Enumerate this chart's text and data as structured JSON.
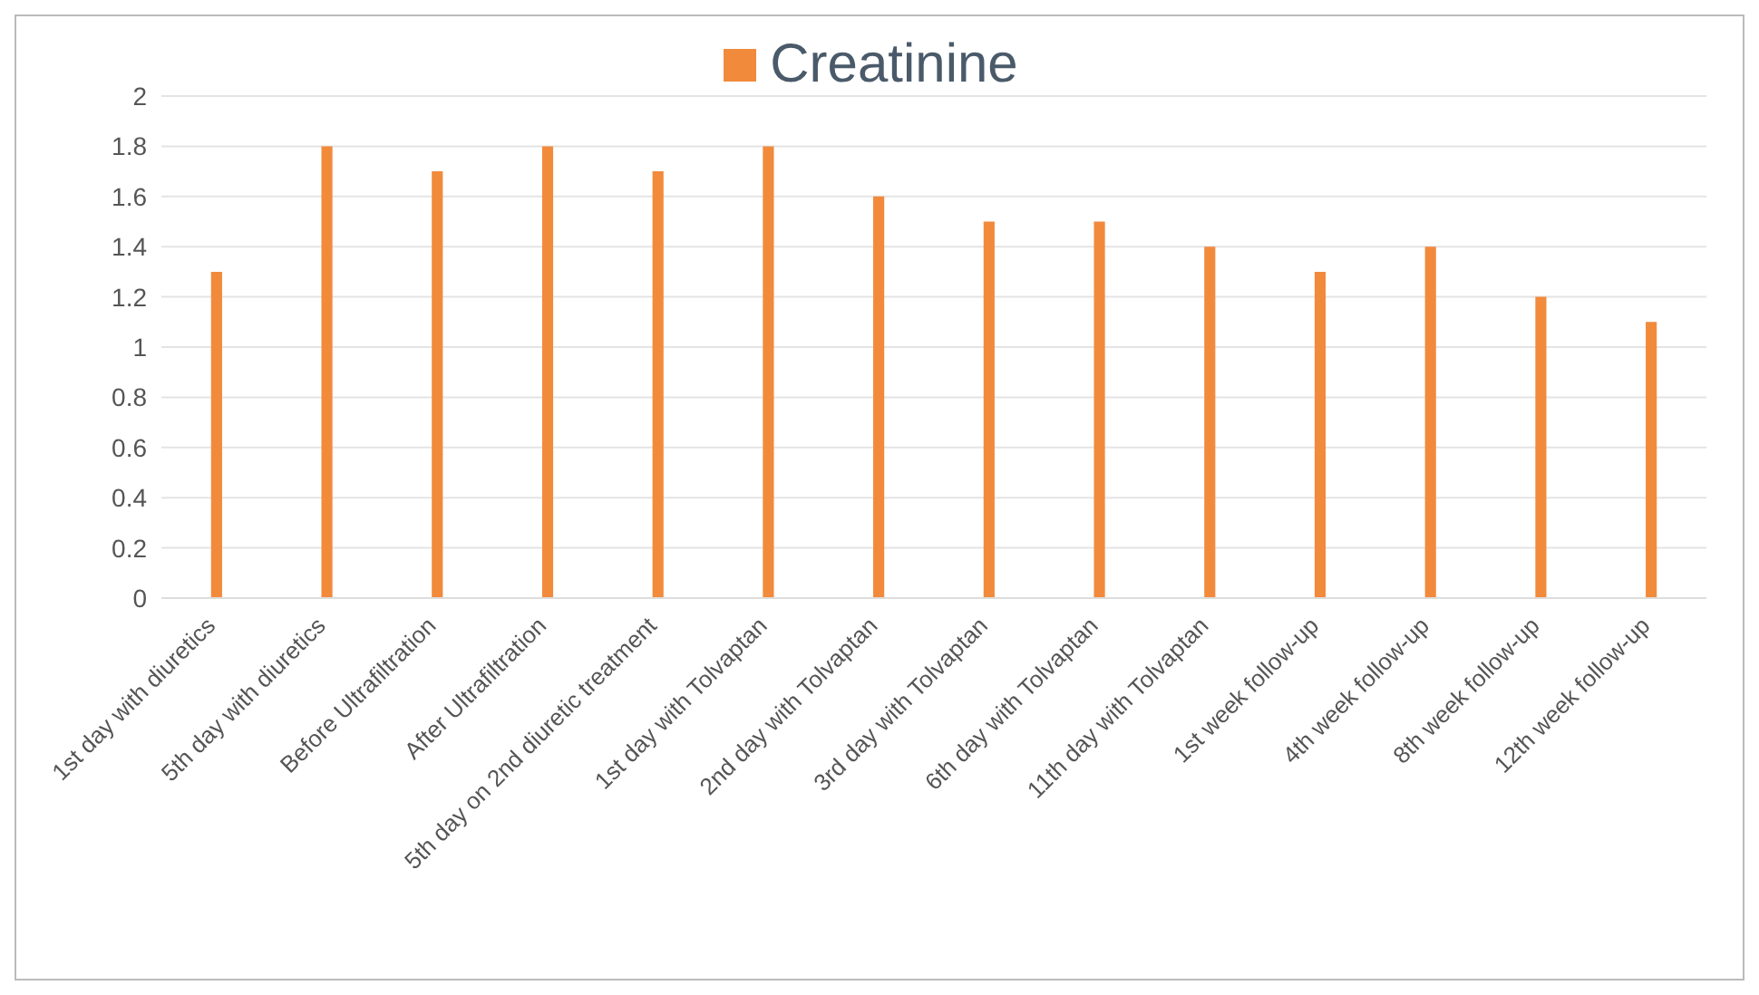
{
  "chart_data": {
    "type": "bar",
    "categories": [
      "1st day with diuretics",
      "5th day with diuretics",
      "Before Ultrafiltration",
      "After Ultrafiltration",
      "5th day on 2nd diuretic treatment",
      "1st day with Tolvaptan",
      "2nd day with Tolvaptan",
      "3rd day with Tolvaptan",
      "6th day with Tolvaptan",
      "11th day with Tolvaptan",
      "1st week follow-up",
      "4th week follow-up",
      "8th week follow-up",
      "12th week follow-up"
    ],
    "series": [
      {
        "name": "Creatinine",
        "color": "#f28a3c",
        "values": [
          1.3,
          1.8,
          1.7,
          1.8,
          1.7,
          1.8,
          1.6,
          1.5,
          1.5,
          1.4,
          1.3,
          1.4,
          1.2,
          1.1
        ]
      }
    ],
    "ylim": [
      0,
      2
    ],
    "yticks": [
      0,
      0.2,
      0.4,
      0.6,
      0.8,
      1,
      1.2,
      1.4,
      1.6,
      1.8,
      2
    ],
    "grid": "y",
    "legend": "top"
  }
}
